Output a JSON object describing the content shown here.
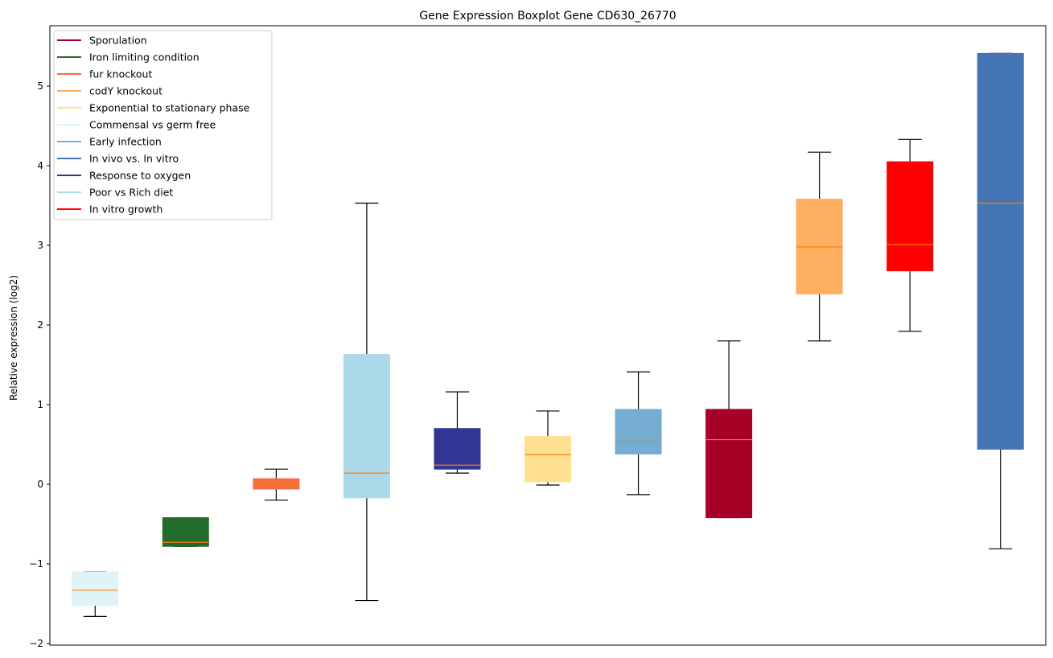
{
  "chart_data": {
    "type": "boxplot",
    "title": "Gene Expression Boxplot Gene CD630_26770",
    "xlabel": "",
    "ylabel": "Relative expression (log2)",
    "ylim": [
      -2.02,
      5.75
    ],
    "yticks": [
      -2,
      -1,
      0,
      1,
      2,
      3,
      4,
      5
    ],
    "ytick_labels": [
      "−2",
      "−1",
      "0",
      "1",
      "2",
      "3",
      "4",
      "5"
    ],
    "grid": false,
    "legend_position": "top-left",
    "median_color": "#ff7f0e",
    "whisker_color": "#000000",
    "legend": [
      {
        "label": "Sporulation",
        "color": "#a50026"
      },
      {
        "label": "Iron limiting condition",
        "color": "#236b2b"
      },
      {
        "label": "fur knockout",
        "color": "#f46d43"
      },
      {
        "label": "codY knockout",
        "color": "#fdae61"
      },
      {
        "label": "Exponential to stationary phase",
        "color": "#fee090"
      },
      {
        "label": "Commensal vs germ free",
        "color": "#e0f3f8"
      },
      {
        "label": "Early infection",
        "color": "#74add1"
      },
      {
        "label": "In vivo vs. In vitro",
        "color": "#4575b4"
      },
      {
        "label": "Response to oxygen",
        "color": "#313695"
      },
      {
        "label": "Poor vs Rich diet",
        "color": "#abd9e9"
      },
      {
        "label": "In vitro growth",
        "color": "#ff0000"
      }
    ],
    "boxes": [
      {
        "name": "Commensal vs germ free",
        "color": "#e0f3f8",
        "whisker_low": -1.66,
        "q1": -1.52,
        "median": -1.33,
        "q3": -1.1,
        "whisker_high": -1.1
      },
      {
        "name": "Iron limiting condition",
        "color": "#236b2b",
        "whisker_low": -0.78,
        "q1": -0.78,
        "median": -0.73,
        "q3": -0.42,
        "whisker_high": -0.42
      },
      {
        "name": "fur knockout",
        "color": "#f46d43",
        "whisker_low": -0.2,
        "q1": -0.06,
        "median": 0.0,
        "q3": 0.07,
        "whisker_high": 0.19
      },
      {
        "name": "Poor vs Rich diet",
        "color": "#abd9e9",
        "whisker_low": -1.46,
        "q1": -0.17,
        "median": 0.14,
        "q3": 1.63,
        "whisker_high": 3.53
      },
      {
        "name": "Response to oxygen",
        "color": "#313695",
        "whisker_low": 0.14,
        "q1": 0.19,
        "median": 0.24,
        "q3": 0.7,
        "whisker_high": 1.16
      },
      {
        "name": "Exponential to stationary phase",
        "color": "#fee090",
        "whisker_low": -0.01,
        "q1": 0.03,
        "median": 0.37,
        "q3": 0.6,
        "whisker_high": 0.92
      },
      {
        "name": "Early infection",
        "color": "#74add1",
        "whisker_low": -0.13,
        "q1": 0.38,
        "median": 0.54,
        "q3": 0.94,
        "whisker_high": 1.41
      },
      {
        "name": "Sporulation",
        "color": "#a50026",
        "whisker_low": -0.42,
        "q1": -0.42,
        "median": 0.56,
        "q3": 0.94,
        "whisker_high": 1.8
      },
      {
        "name": "codY knockout",
        "color": "#fdae61",
        "whisker_low": 1.8,
        "q1": 2.39,
        "median": 2.98,
        "q3": 3.58,
        "whisker_high": 4.17
      },
      {
        "name": "In vitro growth",
        "color": "#ff0000",
        "whisker_low": 1.92,
        "q1": 2.68,
        "median": 3.01,
        "q3": 4.05,
        "whisker_high": 4.33
      },
      {
        "name": "In vivo vs. In vitro",
        "color": "#4575b4",
        "whisker_low": -0.81,
        "q1": 0.44,
        "median": 3.53,
        "q3": 5.41,
        "whisker_high": 5.41
      }
    ]
  }
}
